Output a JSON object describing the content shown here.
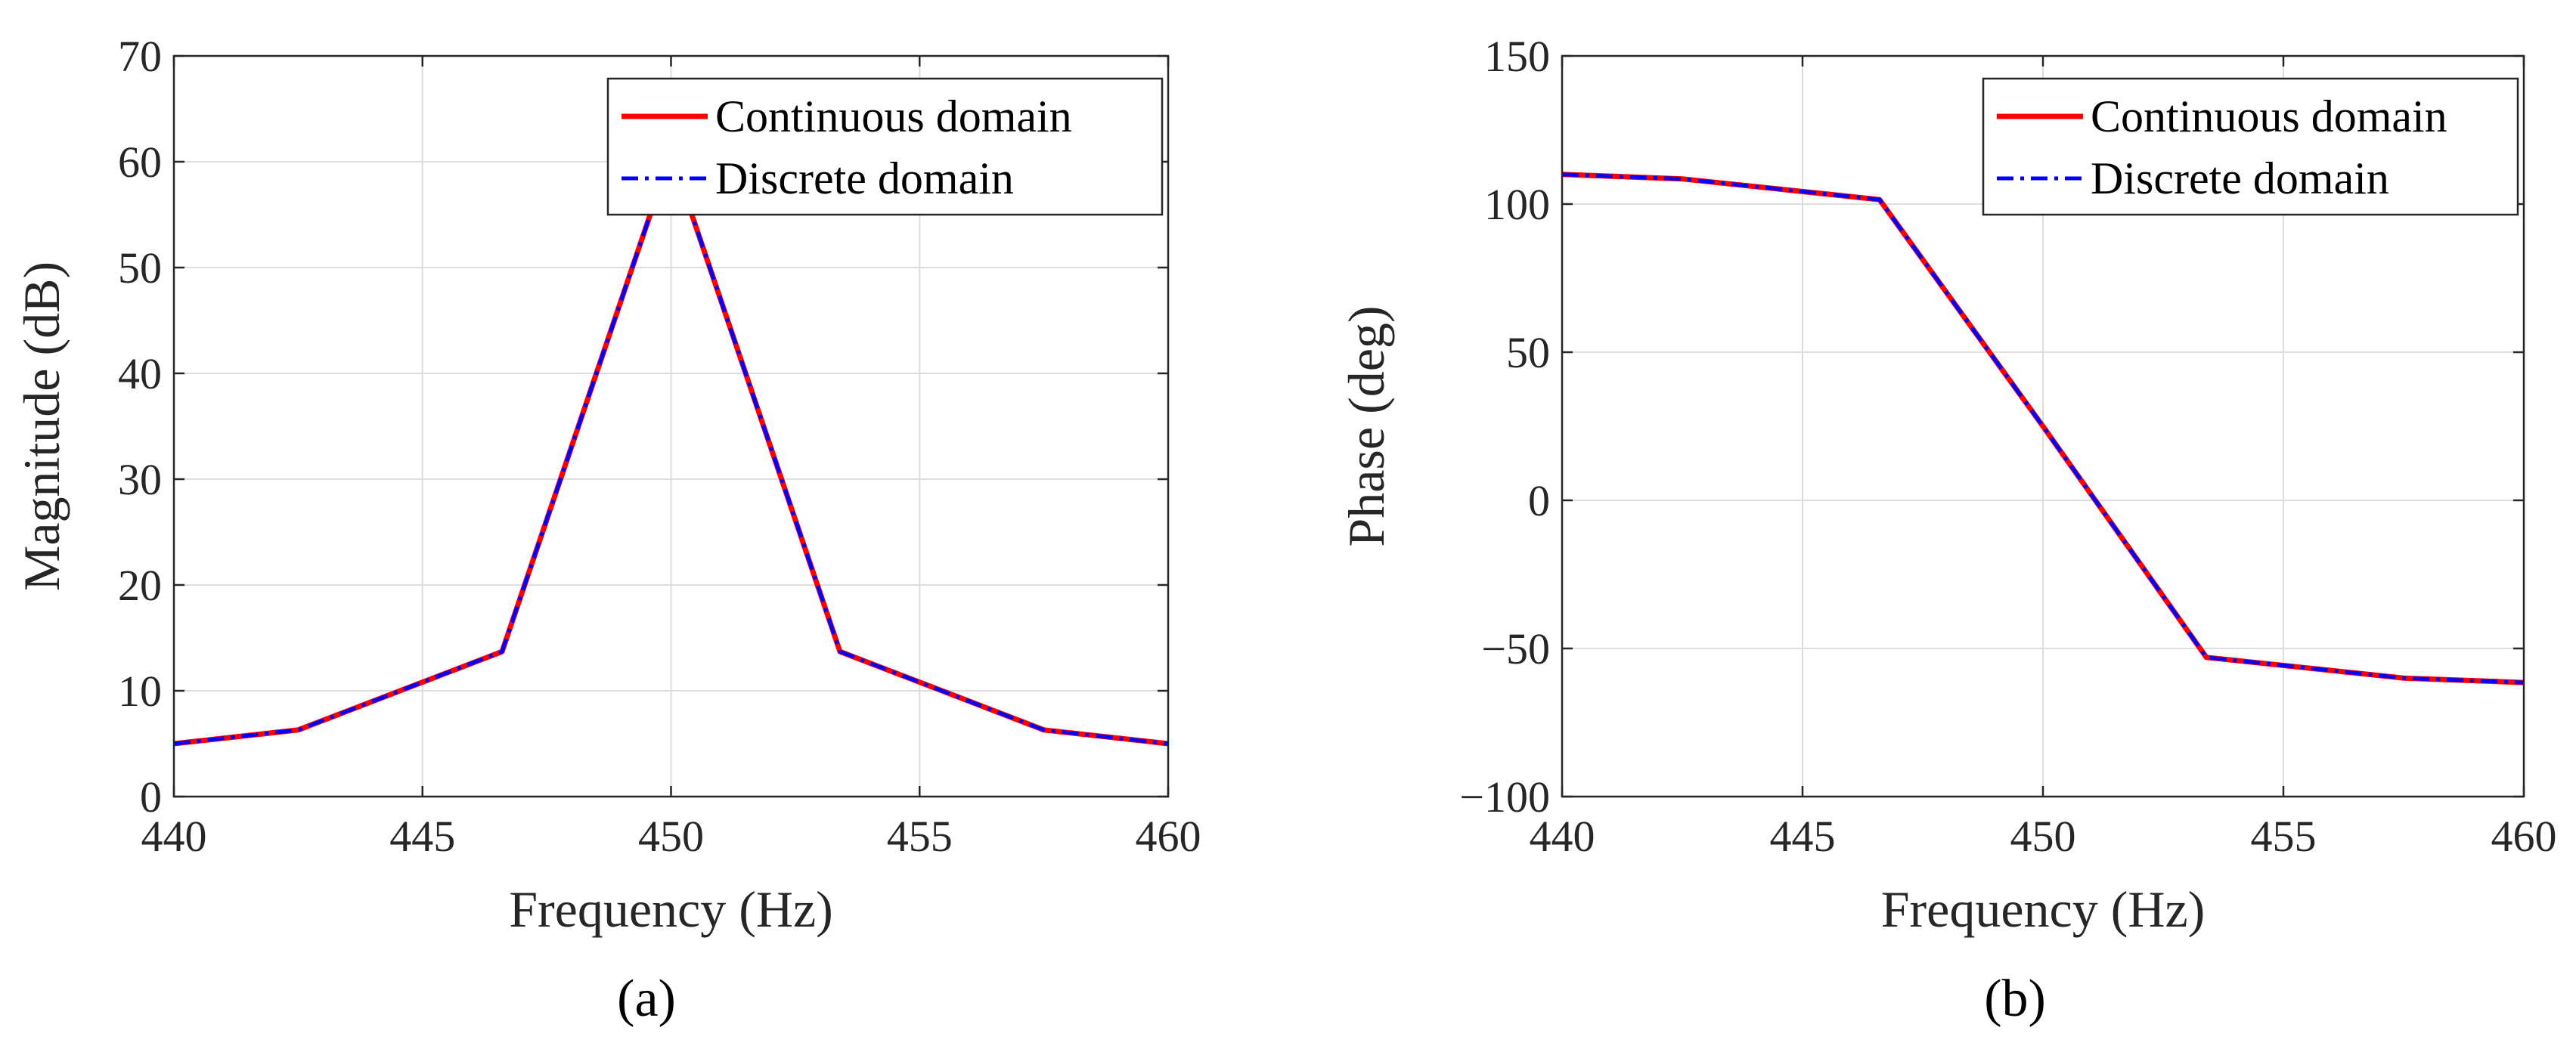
{
  "chart_data": [
    {
      "type": "line",
      "panel_label": "(a)",
      "xlabel": "Frequency (Hz)",
      "ylabel": "Magnitude (dB)",
      "xlim": [
        440,
        460
      ],
      "ylim": [
        0,
        70
      ],
      "xticks": [
        440,
        445,
        450,
        455,
        460
      ],
      "yticks": [
        0,
        10,
        20,
        30,
        40,
        50,
        60,
        70
      ],
      "grid": true,
      "legend_position": "top-right",
      "series": [
        {
          "name": "Continuous domain",
          "color": "#ff0000",
          "style": "solid",
          "x": [
            440,
            442.5,
            446.6,
            450,
            453.4,
            457.5,
            460
          ],
          "y": [
            5,
            6.3,
            13.7,
            60.8,
            13.7,
            6.3,
            5
          ]
        },
        {
          "name": "Discrete domain",
          "color": "#0000ff",
          "style": "dashdot",
          "x": [
            440,
            442.5,
            446.6,
            450,
            453.4,
            457.5,
            460
          ],
          "y": [
            5,
            6.3,
            13.7,
            60.8,
            13.7,
            6.3,
            5
          ]
        }
      ]
    },
    {
      "type": "line",
      "panel_label": "(b)",
      "xlabel": "Frequency (Hz)",
      "ylabel": "Phase (deg)",
      "xlim": [
        440,
        460
      ],
      "ylim": [
        -100,
        150
      ],
      "xticks": [
        440,
        445,
        450,
        455,
        460
      ],
      "yticks": [
        -100,
        -50,
        0,
        50,
        100,
        150
      ],
      "ytick_labels": [
        "−100",
        "−50",
        "0",
        "50",
        "100",
        "150"
      ],
      "grid": true,
      "legend_position": "top-right",
      "series": [
        {
          "name": "Continuous domain",
          "color": "#ff0000",
          "style": "solid",
          "x": [
            440,
            442.5,
            446.6,
            450,
            453.4,
            457.5,
            460
          ],
          "y": [
            110,
            108.5,
            101.5,
            25,
            -53,
            -60,
            -61.5
          ]
        },
        {
          "name": "Discrete domain",
          "color": "#0000ff",
          "style": "dashdot",
          "x": [
            440,
            442.5,
            446.6,
            450,
            453.4,
            457.5,
            460
          ],
          "y": [
            110,
            108.5,
            101.5,
            25,
            -53,
            -60,
            -61.5
          ]
        }
      ]
    }
  ]
}
